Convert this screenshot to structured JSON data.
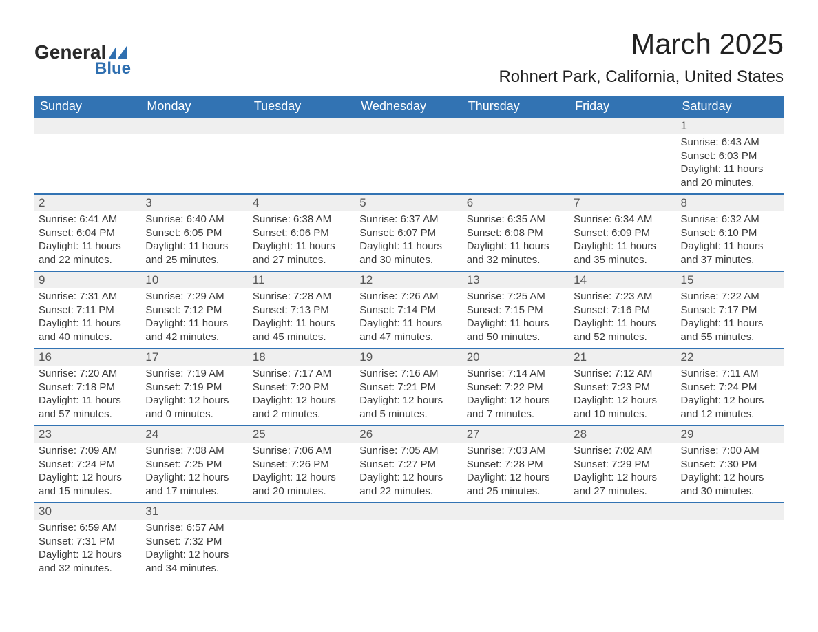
{
  "logo": {
    "text1": "General",
    "text2": "Blue"
  },
  "title": {
    "main": "March 2025",
    "sub": "Rohnert Park, California, United States"
  },
  "dayHeaders": [
    "Sunday",
    "Monday",
    "Tuesday",
    "Wednesday",
    "Thursday",
    "Friday",
    "Saturday"
  ],
  "labels": {
    "sunrise": "Sunrise:",
    "sunset": "Sunset:",
    "daylight": "Daylight:"
  },
  "colors": {
    "header_bg": "#3273b3",
    "header_text": "#ffffff",
    "row_border": "#3273b3",
    "daynum_bg": "#efefef",
    "body_text": "#3a3a3a",
    "logo_blue": "#2f6fb0"
  },
  "weeks": [
    [
      null,
      null,
      null,
      null,
      null,
      null,
      {
        "n": "1",
        "sunrise": "6:43 AM",
        "sunset": "6:03 PM",
        "dl1": "11 hours",
        "dl2": "and 20 minutes."
      }
    ],
    [
      {
        "n": "2",
        "sunrise": "6:41 AM",
        "sunset": "6:04 PM",
        "dl1": "11 hours",
        "dl2": "and 22 minutes."
      },
      {
        "n": "3",
        "sunrise": "6:40 AM",
        "sunset": "6:05 PM",
        "dl1": "11 hours",
        "dl2": "and 25 minutes."
      },
      {
        "n": "4",
        "sunrise": "6:38 AM",
        "sunset": "6:06 PM",
        "dl1": "11 hours",
        "dl2": "and 27 minutes."
      },
      {
        "n": "5",
        "sunrise": "6:37 AM",
        "sunset": "6:07 PM",
        "dl1": "11 hours",
        "dl2": "and 30 minutes."
      },
      {
        "n": "6",
        "sunrise": "6:35 AM",
        "sunset": "6:08 PM",
        "dl1": "11 hours",
        "dl2": "and 32 minutes."
      },
      {
        "n": "7",
        "sunrise": "6:34 AM",
        "sunset": "6:09 PM",
        "dl1": "11 hours",
        "dl2": "and 35 minutes."
      },
      {
        "n": "8",
        "sunrise": "6:32 AM",
        "sunset": "6:10 PM",
        "dl1": "11 hours",
        "dl2": "and 37 minutes."
      }
    ],
    [
      {
        "n": "9",
        "sunrise": "7:31 AM",
        "sunset": "7:11 PM",
        "dl1": "11 hours",
        "dl2": "and 40 minutes."
      },
      {
        "n": "10",
        "sunrise": "7:29 AM",
        "sunset": "7:12 PM",
        "dl1": "11 hours",
        "dl2": "and 42 minutes."
      },
      {
        "n": "11",
        "sunrise": "7:28 AM",
        "sunset": "7:13 PM",
        "dl1": "11 hours",
        "dl2": "and 45 minutes."
      },
      {
        "n": "12",
        "sunrise": "7:26 AM",
        "sunset": "7:14 PM",
        "dl1": "11 hours",
        "dl2": "and 47 minutes."
      },
      {
        "n": "13",
        "sunrise": "7:25 AM",
        "sunset": "7:15 PM",
        "dl1": "11 hours",
        "dl2": "and 50 minutes."
      },
      {
        "n": "14",
        "sunrise": "7:23 AM",
        "sunset": "7:16 PM",
        "dl1": "11 hours",
        "dl2": "and 52 minutes."
      },
      {
        "n": "15",
        "sunrise": "7:22 AM",
        "sunset": "7:17 PM",
        "dl1": "11 hours",
        "dl2": "and 55 minutes."
      }
    ],
    [
      {
        "n": "16",
        "sunrise": "7:20 AM",
        "sunset": "7:18 PM",
        "dl1": "11 hours",
        "dl2": "and 57 minutes."
      },
      {
        "n": "17",
        "sunrise": "7:19 AM",
        "sunset": "7:19 PM",
        "dl1": "12 hours",
        "dl2": "and 0 minutes."
      },
      {
        "n": "18",
        "sunrise": "7:17 AM",
        "sunset": "7:20 PM",
        "dl1": "12 hours",
        "dl2": "and 2 minutes."
      },
      {
        "n": "19",
        "sunrise": "7:16 AM",
        "sunset": "7:21 PM",
        "dl1": "12 hours",
        "dl2": "and 5 minutes."
      },
      {
        "n": "20",
        "sunrise": "7:14 AM",
        "sunset": "7:22 PM",
        "dl1": "12 hours",
        "dl2": "and 7 minutes."
      },
      {
        "n": "21",
        "sunrise": "7:12 AM",
        "sunset": "7:23 PM",
        "dl1": "12 hours",
        "dl2": "and 10 minutes."
      },
      {
        "n": "22",
        "sunrise": "7:11 AM",
        "sunset": "7:24 PM",
        "dl1": "12 hours",
        "dl2": "and 12 minutes."
      }
    ],
    [
      {
        "n": "23",
        "sunrise": "7:09 AM",
        "sunset": "7:24 PM",
        "dl1": "12 hours",
        "dl2": "and 15 minutes."
      },
      {
        "n": "24",
        "sunrise": "7:08 AM",
        "sunset": "7:25 PM",
        "dl1": "12 hours",
        "dl2": "and 17 minutes."
      },
      {
        "n": "25",
        "sunrise": "7:06 AM",
        "sunset": "7:26 PM",
        "dl1": "12 hours",
        "dl2": "and 20 minutes."
      },
      {
        "n": "26",
        "sunrise": "7:05 AM",
        "sunset": "7:27 PM",
        "dl1": "12 hours",
        "dl2": "and 22 minutes."
      },
      {
        "n": "27",
        "sunrise": "7:03 AM",
        "sunset": "7:28 PM",
        "dl1": "12 hours",
        "dl2": "and 25 minutes."
      },
      {
        "n": "28",
        "sunrise": "7:02 AM",
        "sunset": "7:29 PM",
        "dl1": "12 hours",
        "dl2": "and 27 minutes."
      },
      {
        "n": "29",
        "sunrise": "7:00 AM",
        "sunset": "7:30 PM",
        "dl1": "12 hours",
        "dl2": "and 30 minutes."
      }
    ],
    [
      {
        "n": "30",
        "sunrise": "6:59 AM",
        "sunset": "7:31 PM",
        "dl1": "12 hours",
        "dl2": "and 32 minutes."
      },
      {
        "n": "31",
        "sunrise": "6:57 AM",
        "sunset": "7:32 PM",
        "dl1": "12 hours",
        "dl2": "and 34 minutes."
      },
      null,
      null,
      null,
      null,
      null
    ]
  ]
}
